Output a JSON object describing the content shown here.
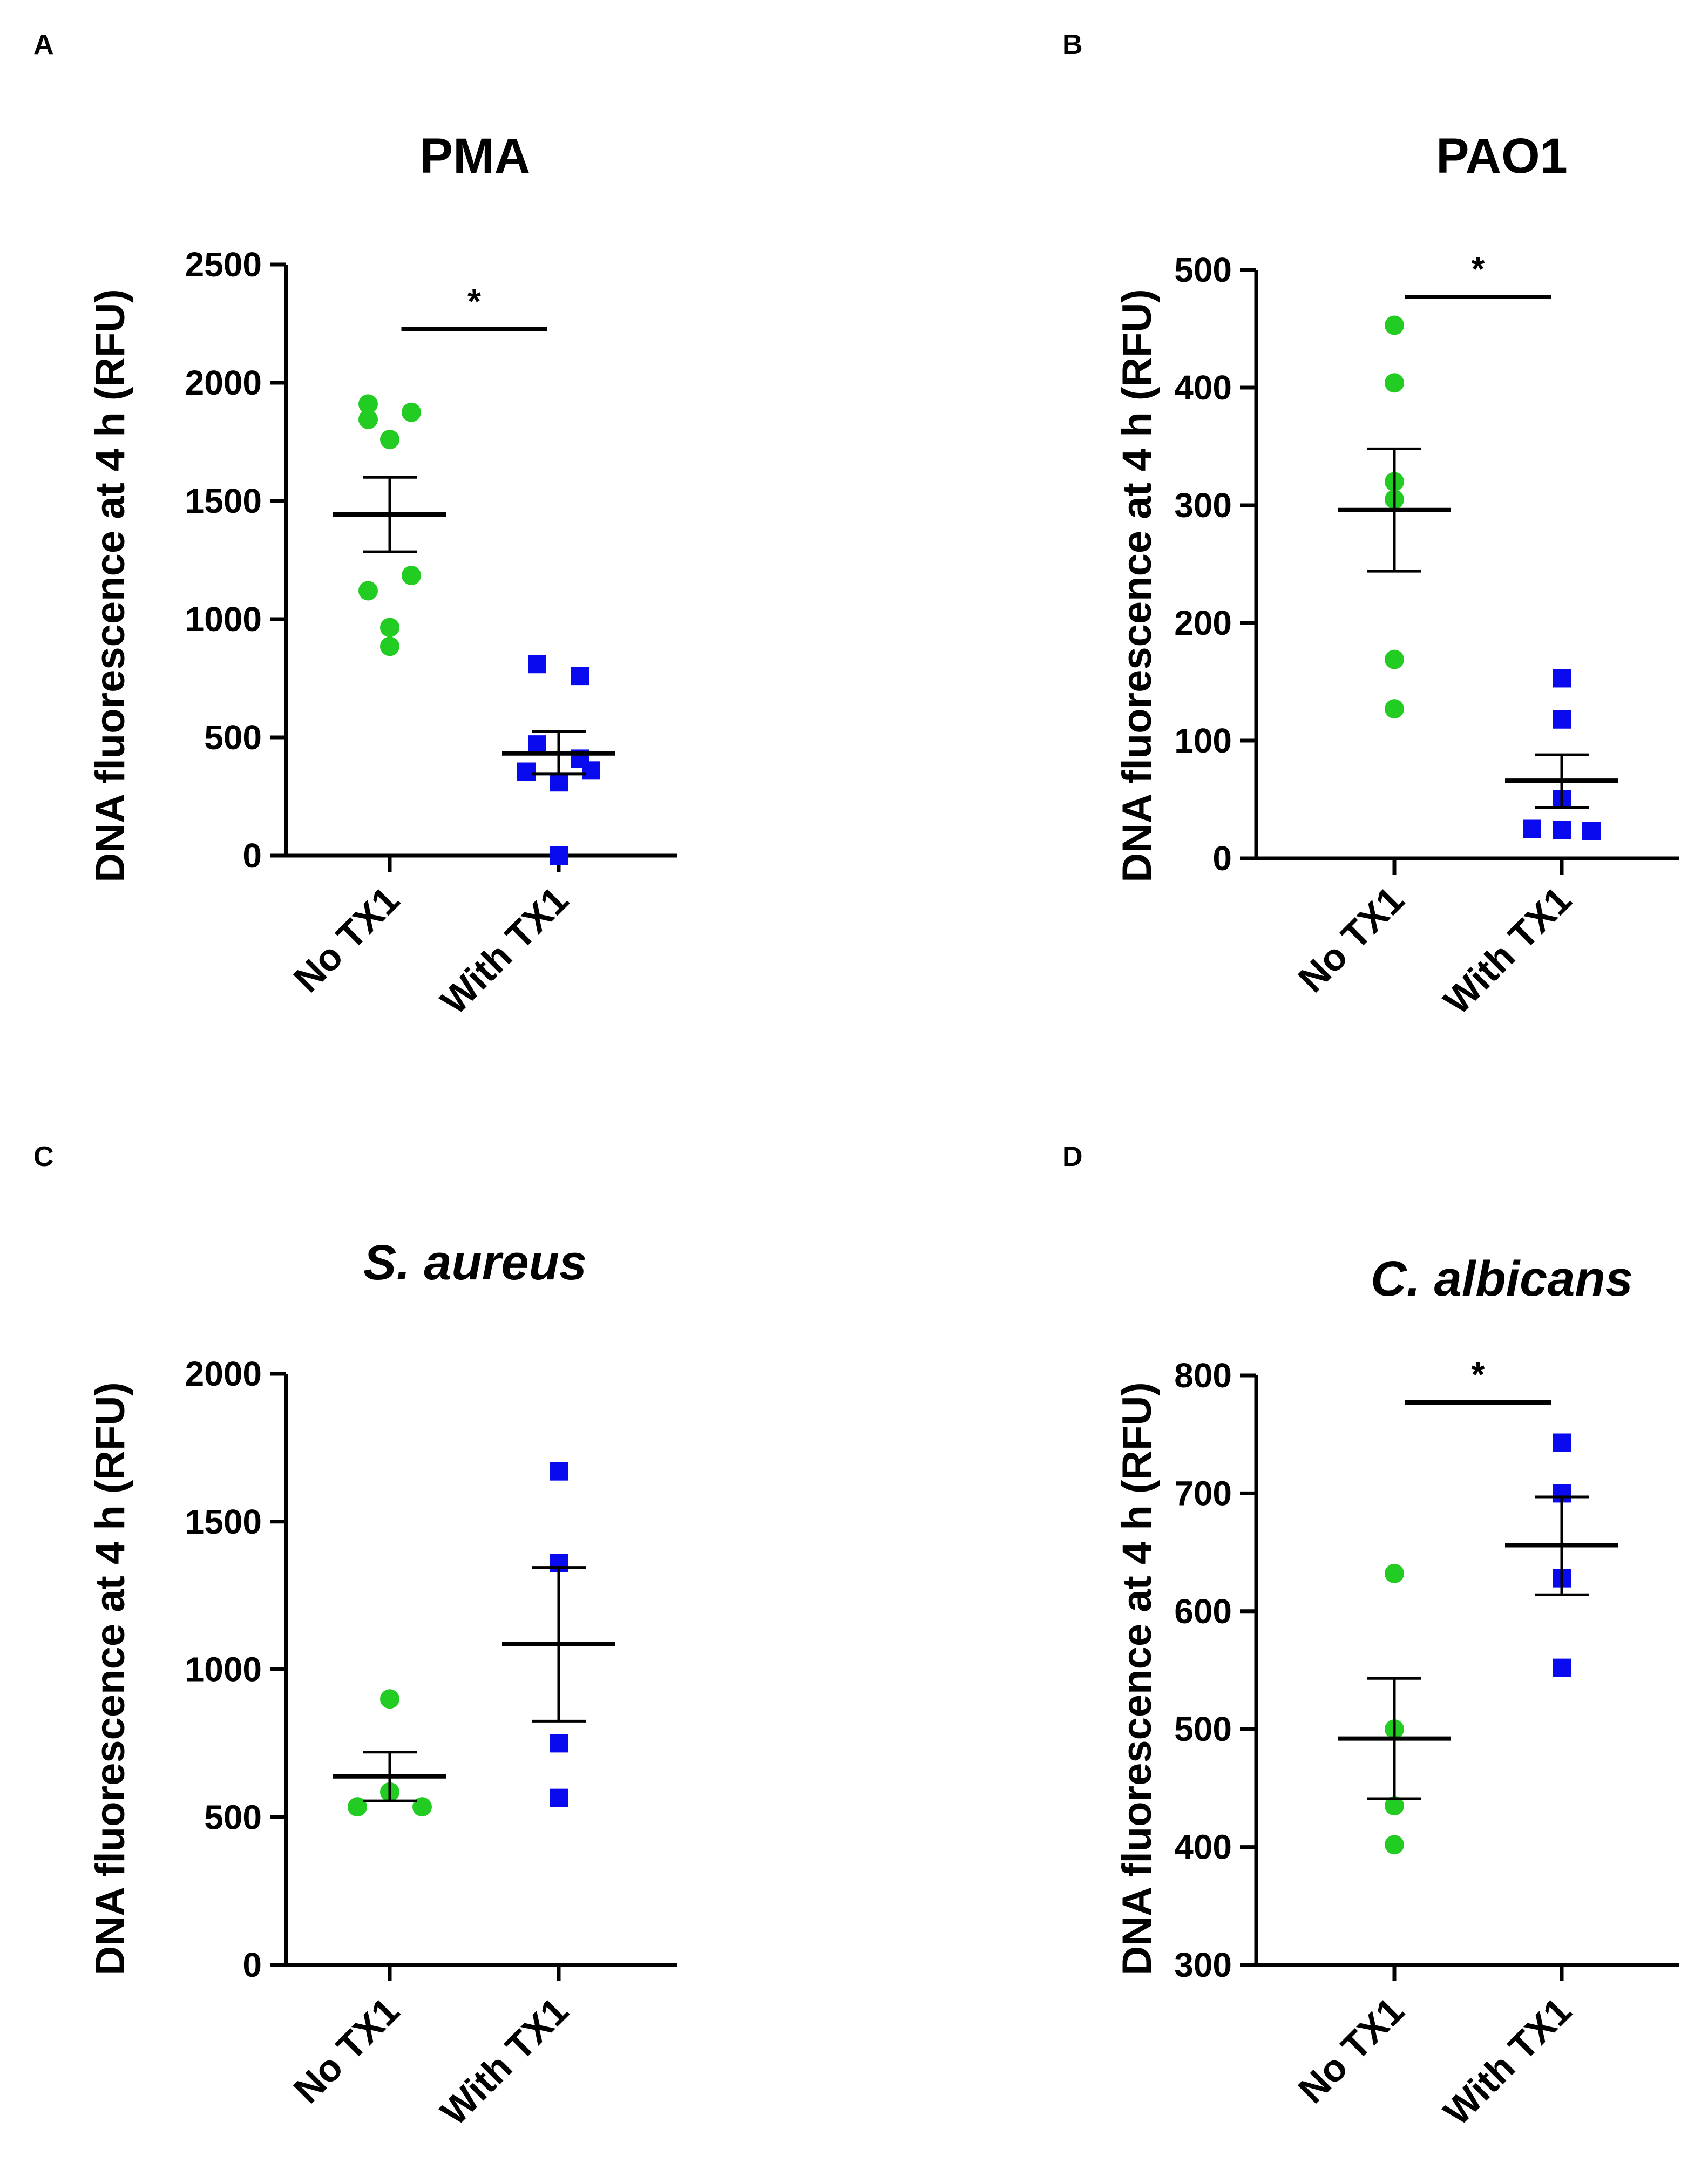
{
  "chart_data": [
    {
      "panel": "A",
      "type": "scatter",
      "title": "PMA",
      "title_italic": false,
      "ylabel": "DNA fluorescence at 4 h (RFU)",
      "ylim": [
        0,
        2500
      ],
      "yticks": [
        0,
        500,
        1000,
        1500,
        2000,
        2500
      ],
      "categories": [
        "No TX1",
        "With TX1"
      ],
      "series": [
        {
          "marker": "circle",
          "color": "#22cc22",
          "values": [
            1910,
            1845,
            1875,
            1760,
            1185,
            1120,
            965,
            885
          ],
          "mean": 1443,
          "sem_low": 1285,
          "sem_high": 1600
        },
        {
          "marker": "square",
          "color": "#0a0aee",
          "values": [
            810,
            760,
            470,
            410,
            360,
            355,
            310,
            0
          ],
          "mean": 432,
          "sem_low": 345,
          "sem_high": 525
        }
      ],
      "significance": "*"
    },
    {
      "panel": "B",
      "type": "scatter",
      "title": "PAO1",
      "title_italic": false,
      "ylabel": "DNA fluorescence at 4 h (RFU)",
      "ylim": [
        0,
        500
      ],
      "yticks": [
        0,
        100,
        200,
        300,
        400,
        500
      ],
      "categories": [
        "No TX1",
        "With TX1"
      ],
      "series": [
        {
          "marker": "circle",
          "color": "#22cc22",
          "values": [
            453,
            404,
            320,
            305,
            169,
            127
          ],
          "mean": 296,
          "sem_low": 244,
          "sem_high": 348
        },
        {
          "marker": "square",
          "color": "#0a0aee",
          "values": [
            153,
            118,
            50,
            25,
            24,
            23
          ],
          "mean": 66,
          "sem_low": 43,
          "sem_high": 88
        }
      ],
      "significance": "*"
    },
    {
      "panel": "C",
      "type": "scatter",
      "title": "S. aureus",
      "title_italic": true,
      "ylabel": "DNA fluorescence at 4 h (RFU)",
      "ylim": [
        0,
        2000
      ],
      "yticks": [
        0,
        500,
        1000,
        1500,
        2000
      ],
      "categories": [
        "No TX1",
        "With TX1"
      ],
      "series": [
        {
          "marker": "circle",
          "color": "#22cc22",
          "values": [
            900,
            585,
            535,
            535
          ],
          "mean": 638,
          "sem_low": 555,
          "sem_high": 720
        },
        {
          "marker": "square",
          "color": "#0a0aee",
          "values": [
            1670,
            1360,
            750,
            565
          ],
          "mean": 1085,
          "sem_low": 825,
          "sem_high": 1345
        }
      ],
      "significance": ""
    },
    {
      "panel": "D",
      "type": "scatter",
      "title": "C. albicans",
      "title_italic": true,
      "ylabel": "DNA fluorescence at 4 h (RFU)",
      "ylim": [
        300,
        800
      ],
      "yticks": [
        300,
        400,
        500,
        600,
        700,
        800
      ],
      "categories": [
        "No TX1",
        "With TX1"
      ],
      "series": [
        {
          "marker": "circle",
          "color": "#22cc22",
          "values": [
            632,
            500,
            435,
            402
          ],
          "mean": 492,
          "sem_low": 441,
          "sem_high": 543
        },
        {
          "marker": "square",
          "color": "#0a0aee",
          "values": [
            743,
            700,
            628,
            552
          ],
          "mean": 656,
          "sem_low": 614,
          "sem_high": 697
        }
      ],
      "significance": "*"
    }
  ]
}
